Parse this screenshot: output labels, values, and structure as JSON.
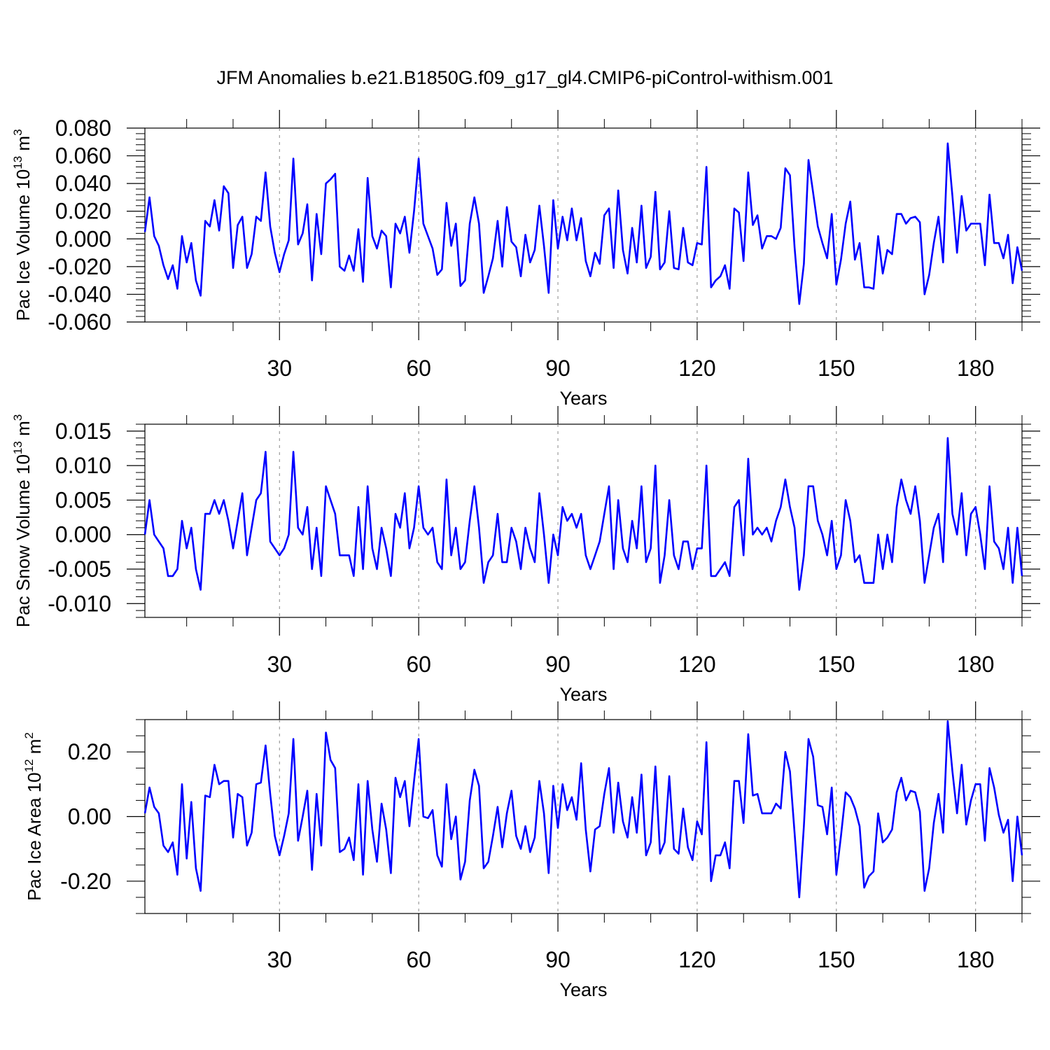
{
  "title": "JFM Anomalies b.e21.B1850G.f09_g17_gl4.CMIP6-piControl-withism.001",
  "line_color": "#0000ff",
  "chart_data": [
    {
      "type": "line",
      "ylabel": {
        "prefix": "Pac Ice Volume 10",
        "exponent": "13",
        "unit": " m",
        "unit_exponent": "3"
      },
      "xlabel": "Years",
      "xlim": [
        1,
        190
      ],
      "ylim": [
        -0.06,
        0.08
      ],
      "xticks": [
        30,
        60,
        90,
        120,
        150,
        180
      ],
      "xtick_labels": [
        "30",
        "60",
        "90",
        "120",
        "150",
        "180"
      ],
      "yticks": [
        -0.06,
        -0.04,
        -0.02,
        0.0,
        0.02,
        0.04,
        0.06,
        0.08
      ],
      "ytick_labels": [
        "-0.060",
        "-0.040",
        "-0.020",
        "0.000",
        "0.020",
        "0.040",
        "0.060",
        "0.080"
      ],
      "yminor_step": 0.004,
      "grid": "vertical dashed at major x ticks",
      "series": [
        {
          "name": "Pac Ice Volume",
          "x_start": 1,
          "values": [
            0.005,
            0.03,
            0.002,
            -0.005,
            -0.019,
            -0.029,
            -0.019,
            -0.036,
            0.002,
            -0.017,
            -0.003,
            -0.03,
            -0.041,
            0.013,
            0.009,
            0.028,
            0.006,
            0.038,
            0.033,
            -0.021,
            0.01,
            0.016,
            -0.021,
            -0.011,
            0.016,
            0.013,
            0.048,
            0.009,
            -0.01,
            -0.024,
            -0.011,
            -0.001,
            0.058,
            -0.004,
            0.004,
            0.025,
            -0.03,
            0.018,
            -0.011,
            0.04,
            0.043,
            0.047,
            -0.02,
            -0.023,
            -0.012,
            -0.023,
            0.007,
            -0.031,
            0.044,
            0.002,
            -0.007,
            0.006,
            0.002,
            -0.035,
            0.011,
            0.004,
            0.016,
            -0.01,
            0.02,
            0.058,
            0.011,
            0.002,
            -0.007,
            -0.026,
            -0.022,
            0.026,
            -0.005,
            0.011,
            -0.034,
            -0.03,
            0.011,
            0.03,
            0.011,
            -0.039,
            -0.027,
            -0.014,
            0.013,
            -0.02,
            0.023,
            -0.002,
            -0.006,
            -0.027,
            0.003,
            -0.017,
            -0.008,
            0.024,
            -0.005,
            -0.039,
            0.028,
            -0.007,
            0.016,
            -0.001,
            0.022,
            -0.001,
            0.015,
            -0.016,
            -0.027,
            -0.01,
            -0.018,
            0.017,
            0.022,
            -0.021,
            0.035,
            -0.008,
            -0.025,
            0.008,
            -0.017,
            0.024,
            -0.021,
            -0.013,
            0.034,
            -0.022,
            -0.017,
            0.02,
            -0.021,
            -0.022,
            0.008,
            -0.017,
            -0.019,
            -0.003,
            -0.004,
            0.052,
            -0.035,
            -0.03,
            -0.027,
            -0.019,
            -0.036,
            0.022,
            0.019,
            -0.016,
            0.048,
            0.01,
            0.017,
            -0.007,
            0.002,
            0.002,
            0.0,
            0.008,
            0.051,
            0.046,
            -0.006,
            -0.047,
            -0.018,
            0.057,
            0.033,
            0.009,
            -0.003,
            -0.014,
            0.018,
            -0.033,
            -0.015,
            0.011,
            0.027,
            -0.015,
            -0.003,
            -0.035,
            -0.035,
            -0.036,
            0.002,
            -0.025,
            -0.008,
            -0.011,
            0.018,
            0.018,
            0.011,
            0.015,
            0.016,
            0.012,
            -0.04,
            -0.026,
            -0.003,
            0.016,
            -0.017,
            0.069,
            0.031,
            -0.01,
            0.031,
            0.006,
            0.011,
            0.011,
            0.011,
            -0.019,
            0.032,
            -0.003,
            -0.003,
            -0.014,
            0.003,
            -0.032,
            -0.006,
            -0.023
          ]
        }
      ]
    },
    {
      "type": "line",
      "ylabel": {
        "prefix": "Pac Snow Volume 10",
        "exponent": "13",
        "unit": " m",
        "unit_exponent": "3"
      },
      "xlabel": "Years",
      "xlim": [
        1,
        190
      ],
      "ylim": [
        -0.012,
        0.016
      ],
      "xticks": [
        30,
        60,
        90,
        120,
        150,
        180
      ],
      "xtick_labels": [
        "30",
        "60",
        "90",
        "120",
        "150",
        "180"
      ],
      "yticks": [
        -0.01,
        -0.005,
        0.0,
        0.005,
        0.01,
        0.015
      ],
      "ytick_labels": [
        "-0.010",
        "-0.005",
        "0.000",
        "0.005",
        "0.010",
        "0.015"
      ],
      "yminor_step": 0.001,
      "grid": "vertical dashed at major x ticks",
      "series": [
        {
          "name": "Pac Snow Volume",
          "x_start": 1,
          "values": [
            0.0,
            0.005,
            0.0,
            -0.001,
            -0.002,
            -0.006,
            -0.006,
            -0.005,
            0.002,
            -0.002,
            0.001,
            -0.005,
            -0.008,
            0.003,
            0.003,
            0.005,
            0.003,
            0.005,
            0.002,
            -0.002,
            0.002,
            0.006,
            -0.003,
            0.001,
            0.005,
            0.006,
            0.012,
            -0.001,
            -0.002,
            -0.003,
            -0.002,
            0.0,
            0.012,
            0.001,
            0.0,
            0.004,
            -0.005,
            0.001,
            -0.006,
            0.007,
            0.005,
            0.003,
            -0.003,
            -0.003,
            -0.003,
            -0.006,
            0.004,
            -0.005,
            0.007,
            -0.002,
            -0.005,
            0.001,
            -0.002,
            -0.006,
            0.003,
            0.001,
            0.006,
            -0.002,
            0.001,
            0.007,
            0.001,
            0.0,
            0.001,
            -0.004,
            -0.005,
            0.008,
            -0.003,
            0.001,
            -0.005,
            -0.004,
            0.002,
            0.007,
            0.001,
            -0.007,
            -0.004,
            -0.003,
            0.003,
            -0.004,
            -0.004,
            0.001,
            -0.001,
            -0.005,
            0.001,
            -0.002,
            -0.004,
            0.006,
            0.0,
            -0.007,
            0.0,
            -0.003,
            0.004,
            0.002,
            0.003,
            0.001,
            0.003,
            -0.003,
            -0.005,
            -0.003,
            -0.001,
            0.003,
            0.007,
            -0.005,
            0.005,
            -0.002,
            -0.004,
            0.002,
            -0.002,
            0.007,
            -0.004,
            -0.002,
            0.01,
            -0.007,
            -0.003,
            0.005,
            -0.003,
            -0.005,
            -0.001,
            -0.001,
            -0.005,
            -0.002,
            -0.002,
            0.01,
            -0.006,
            -0.006,
            -0.005,
            -0.004,
            -0.006,
            0.004,
            0.005,
            -0.003,
            0.011,
            0.0,
            0.001,
            0.0,
            0.001,
            -0.001,
            0.002,
            0.004,
            0.008,
            0.004,
            0.001,
            -0.008,
            -0.003,
            0.007,
            0.007,
            0.002,
            0.0,
            -0.003,
            0.002,
            -0.005,
            -0.003,
            0.005,
            0.002,
            -0.004,
            -0.003,
            -0.007,
            -0.007,
            -0.007,
            0.0,
            -0.005,
            0.0,
            -0.004,
            0.004,
            0.008,
            0.005,
            0.003,
            0.007,
            0.002,
            -0.007,
            -0.003,
            0.001,
            0.003,
            -0.004,
            0.014,
            0.003,
            0.0,
            0.006,
            -0.003,
            0.003,
            0.004,
            0.0,
            -0.005,
            0.007,
            -0.001,
            -0.002,
            -0.005,
            0.001,
            -0.007,
            0.001,
            -0.006
          ]
        }
      ]
    },
    {
      "type": "line",
      "ylabel": {
        "prefix": "Pac Ice Area 10",
        "exponent": "12",
        "unit": " m",
        "unit_exponent": "2"
      },
      "xlabel": "Years",
      "xlim": [
        1,
        190
      ],
      "ylim": [
        -0.3,
        0.3
      ],
      "xticks": [
        30,
        60,
        90,
        120,
        150,
        180
      ],
      "xtick_labels": [
        "30",
        "60",
        "90",
        "120",
        "150",
        "180"
      ],
      "yticks": [
        -0.2,
        0.0,
        0.2
      ],
      "ytick_labels": [
        "-0.20",
        "0.00",
        "0.20"
      ],
      "yminor_step": 0.05,
      "grid": "vertical dashed at major x ticks",
      "series": [
        {
          "name": "Pac Ice Area",
          "x_start": 1,
          "values": [
            0.01,
            0.09,
            0.03,
            0.01,
            -0.09,
            -0.11,
            -0.08,
            -0.18,
            0.1,
            -0.13,
            0.045,
            -0.16,
            -0.23,
            0.065,
            0.06,
            0.16,
            0.1,
            0.11,
            0.11,
            -0.065,
            0.07,
            0.06,
            -0.09,
            -0.05,
            0.1,
            0.105,
            0.22,
            0.07,
            -0.06,
            -0.12,
            -0.06,
            0.01,
            0.24,
            -0.075,
            0.0,
            0.08,
            -0.165,
            0.07,
            -0.09,
            0.26,
            0.175,
            0.15,
            -0.11,
            -0.1,
            -0.065,
            -0.135,
            0.1,
            -0.18,
            0.11,
            -0.04,
            -0.14,
            0.04,
            -0.04,
            -0.175,
            0.12,
            0.06,
            0.11,
            -0.03,
            0.11,
            0.24,
            0.0,
            -0.005,
            0.02,
            -0.12,
            -0.155,
            0.1,
            -0.07,
            0.0,
            -0.195,
            -0.14,
            0.05,
            0.145,
            0.095,
            -0.16,
            -0.14,
            -0.06,
            0.03,
            -0.095,
            0.01,
            0.08,
            -0.06,
            -0.1,
            -0.03,
            -0.11,
            -0.065,
            0.11,
            0.01,
            -0.175,
            0.095,
            -0.035,
            0.1,
            0.02,
            0.06,
            -0.01,
            0.165,
            -0.04,
            -0.17,
            -0.04,
            -0.03,
            0.07,
            0.15,
            -0.05,
            0.105,
            -0.015,
            -0.065,
            0.06,
            -0.05,
            0.13,
            -0.12,
            -0.08,
            0.155,
            -0.115,
            -0.08,
            0.125,
            -0.1,
            -0.115,
            0.025,
            -0.095,
            -0.135,
            -0.015,
            -0.055,
            0.23,
            -0.2,
            -0.12,
            -0.12,
            -0.08,
            -0.16,
            0.11,
            0.11,
            -0.02,
            0.255,
            0.065,
            0.07,
            0.01,
            0.01,
            0.01,
            0.04,
            0.025,
            0.2,
            0.14,
            -0.05,
            -0.25,
            -0.03,
            0.24,
            0.185,
            0.035,
            0.03,
            -0.055,
            0.09,
            -0.18,
            -0.06,
            0.075,
            0.06,
            0.025,
            -0.03,
            -0.22,
            -0.185,
            -0.17,
            0.01,
            -0.08,
            -0.065,
            -0.04,
            0.075,
            0.12,
            0.05,
            0.08,
            0.075,
            0.015,
            -0.23,
            -0.16,
            -0.02,
            0.07,
            -0.05,
            0.295,
            0.14,
            0.01,
            0.16,
            -0.025,
            0.05,
            0.1,
            0.1,
            -0.075,
            0.15,
            0.09,
            0.005,
            -0.05,
            -0.01,
            -0.2,
            0.0,
            -0.12
          ]
        }
      ]
    }
  ]
}
